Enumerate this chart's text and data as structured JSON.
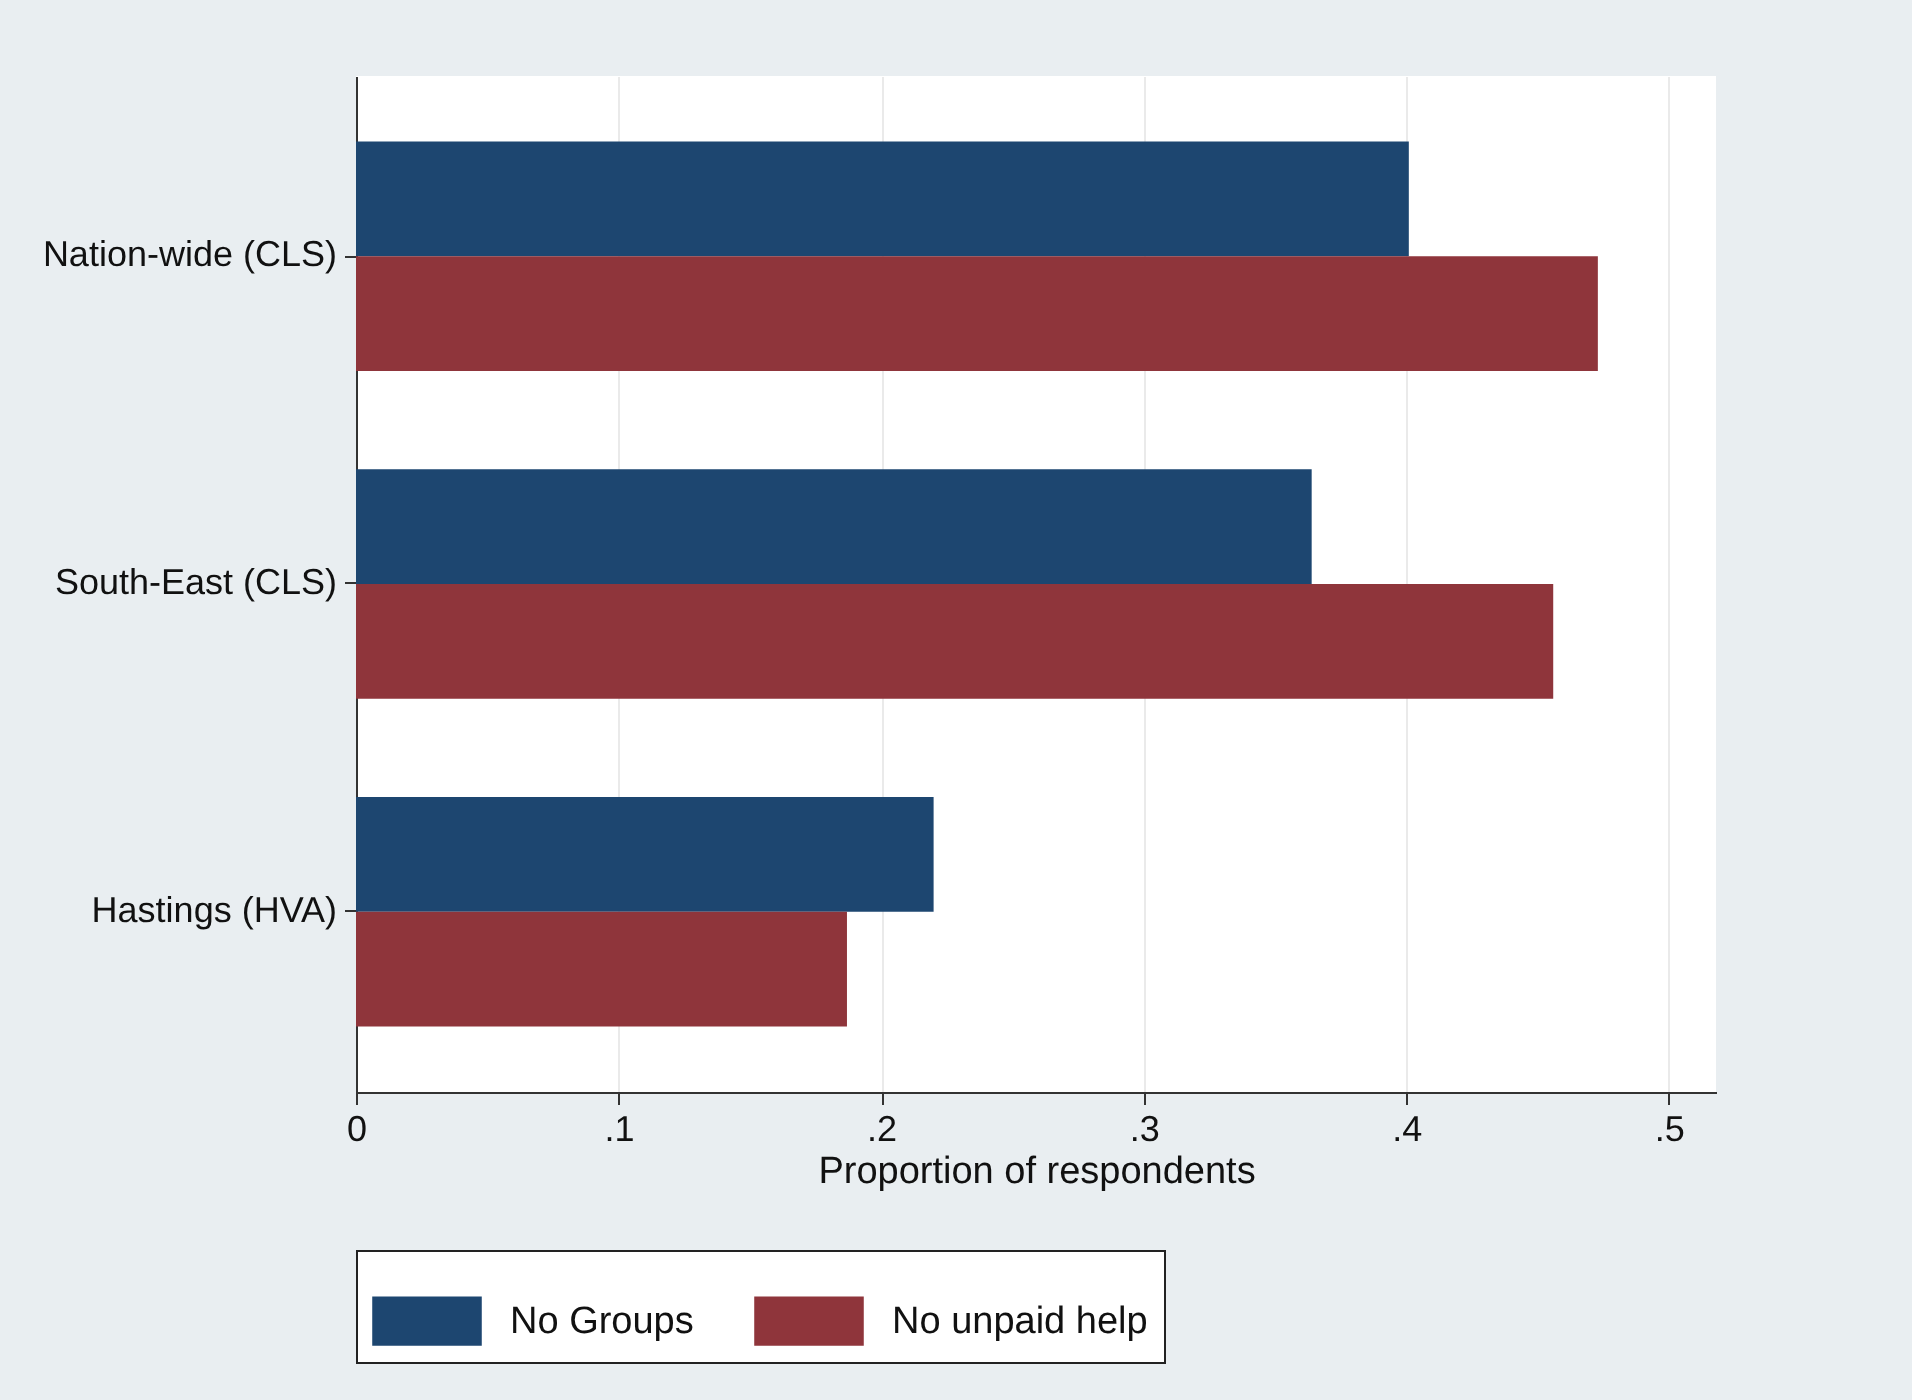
{
  "chart_data": {
    "type": "bar",
    "orientation": "horizontal",
    "xlabel": "Proportion of respondents",
    "categories": [
      "Nation-wide (CLS)",
      "South-East (CLS)",
      "Hastings (HVA)"
    ],
    "series": [
      {
        "name": "No Groups",
        "color": "#1d4670",
        "values": [
          0.401,
          0.364,
          0.22
        ]
      },
      {
        "name": "No unpaid help",
        "color": "#8f353b",
        "values": [
          0.473,
          0.456,
          0.187
        ]
      }
    ],
    "xlim": [
      0,
      0.518
    ],
    "xticks": [
      0,
      {
        "value": 0.1,
        "label": ".1"
      },
      {
        "value": 0.2,
        "label": ".2"
      },
      {
        "value": 0.3,
        "label": ".3"
      },
      {
        "value": 0.4,
        "label": ".4"
      },
      {
        "value": 0.5,
        "label": ".5"
      }
    ],
    "grid": "x",
    "legend": "bottom"
  }
}
